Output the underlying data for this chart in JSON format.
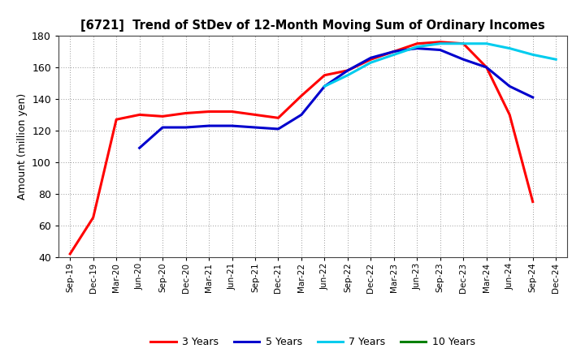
{
  "title": "[6721]  Trend of StDev of 12-Month Moving Sum of Ordinary Incomes",
  "ylabel": "Amount (million yen)",
  "ylim": [
    40,
    180
  ],
  "yticks": [
    40,
    60,
    80,
    100,
    120,
    140,
    160,
    180
  ],
  "background_color": "#ffffff",
  "grid_color": "#999999",
  "legend_labels": [
    "3 Years",
    "5 Years",
    "7 Years",
    "10 Years"
  ],
  "legend_colors": [
    "#ff0000",
    "#0000cd",
    "#00ccee",
    "#008000"
  ],
  "x_labels": [
    "Sep-19",
    "Dec-19",
    "Mar-20",
    "Jun-20",
    "Sep-20",
    "Dec-20",
    "Mar-21",
    "Jun-21",
    "Sep-21",
    "Dec-21",
    "Mar-22",
    "Jun-22",
    "Sep-22",
    "Dec-22",
    "Mar-23",
    "Jun-23",
    "Sep-23",
    "Dec-23",
    "Mar-24",
    "Jun-24",
    "Sep-24",
    "Dec-24"
  ],
  "series_3y": [
    42,
    65,
    127,
    130,
    129,
    131,
    132,
    132,
    130,
    128,
    142,
    155,
    158,
    165,
    170,
    175,
    176,
    175,
    160,
    130,
    75,
    null
  ],
  "series_5y": [
    null,
    null,
    null,
    109,
    122,
    122,
    123,
    123,
    122,
    121,
    130,
    148,
    158,
    166,
    170,
    172,
    171,
    165,
    160,
    148,
    141,
    null
  ],
  "series_7y": [
    null,
    null,
    null,
    null,
    null,
    null,
    null,
    null,
    null,
    null,
    null,
    148,
    155,
    163,
    168,
    173,
    175,
    175,
    175,
    172,
    168,
    165
  ],
  "series_10y": [
    null,
    null,
    null,
    null,
    null,
    null,
    null,
    null,
    null,
    null,
    null,
    null,
    null,
    null,
    null,
    null,
    null,
    null,
    null,
    null,
    null,
    null
  ],
  "linewidths": [
    2.2,
    2.2,
    2.2,
    2.2
  ]
}
